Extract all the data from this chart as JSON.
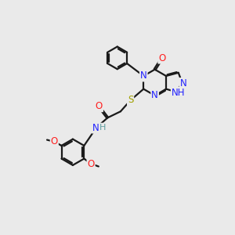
{
  "bg_color": "#eaeaea",
  "bond_color": "#1a1a1a",
  "atom_colors": {
    "N": "#2020ff",
    "O": "#ff2020",
    "S": "#a0a000",
    "NH": "#2020ff",
    "H": "#5f9ea0",
    "C": "#1a1a1a"
  },
  "lw": 1.6,
  "dbo": 0.055,
  "fs": 8.5
}
